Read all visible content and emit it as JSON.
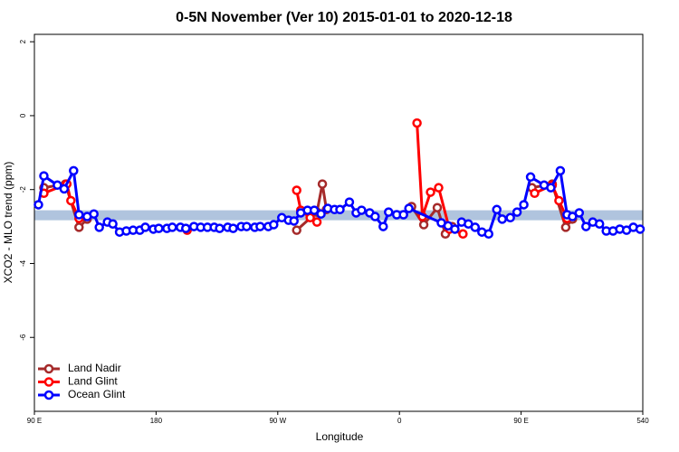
{
  "chart_data": {
    "type": "line",
    "title": "0-5N November (Ver 10)   2015-01-01 to 2020-12-18",
    "x_label": "Longitude",
    "y_label": "XCO2 - MLO trend (ppm)",
    "xlim": [
      90,
      540
    ],
    "ylim": [
      -8,
      2.2
    ],
    "xticks": [
      {
        "value": 90,
        "label": "90 E"
      },
      180,
      {
        "value": 270,
        "label": "90 W"
      },
      {
        "value": 360,
        "label": "0"
      },
      {
        "value": 450,
        "label": "90 E"
      },
      540
    ],
    "yticks": [
      2,
      0,
      -2,
      -4,
      -6
    ],
    "band": [
      -2.56,
      -2.83
    ],
    "band_color": "#b0c4de",
    "legend": "bottom-left",
    "series": [
      {
        "name": "Land Nadir",
        "color": "#a52a2a",
        "x": [
          97,
          113,
          123,
          129,
          200,
          284,
          299,
          303,
          306,
          340,
          369,
          378,
          388,
          394,
          399,
          430,
          458,
          473,
          483,
          488
        ],
        "values": [
          -1.95,
          -1.85,
          -3.02,
          -2.8,
          null,
          -3.1,
          -2.61,
          -1.85,
          -2.54,
          null,
          -2.46,
          -2.95,
          -2.49,
          -3.2,
          -3.0,
          null,
          -1.95,
          -1.85,
          -3.02,
          -2.8
        ]
      },
      {
        "name": "Land Glint",
        "color": "#ff0000",
        "x": [
          97,
          114,
          117,
          123,
          160,
          203,
          250,
          284,
          287,
          294,
          299,
          330,
          373,
          377,
          383,
          389,
          397,
          407,
          430,
          460,
          473,
          478,
          484
        ],
        "values": [
          -2.1,
          -1.85,
          -2.3,
          -2.78,
          null,
          -3.1,
          null,
          -2.02,
          -2.56,
          -2.76,
          -2.88,
          null,
          -0.2,
          -2.73,
          -2.07,
          -1.95,
          -3.07,
          -3.2,
          null,
          -2.1,
          -1.88,
          -2.3,
          -2.78
        ]
      },
      {
        "name": "Ocean Glint",
        "color": "#0000ff",
        "x": [
          93,
          97,
          107,
          112,
          119,
          123,
          129,
          134,
          138,
          144,
          148,
          153,
          158,
          163,
          168,
          172,
          178,
          182,
          188,
          192,
          198,
          202,
          208,
          213,
          218,
          223,
          227,
          233,
          237,
          243,
          247,
          253,
          257,
          263,
          267,
          273,
          278,
          282,
          287,
          292,
          297,
          302,
          307,
          312,
          316,
          323,
          328,
          332,
          338,
          342,
          348,
          352,
          358,
          363,
          367,
          391,
          396,
          401,
          406,
          411,
          416,
          421,
          426,
          432,
          436,
          442,
          447,
          452,
          457,
          467,
          472,
          479,
          484,
          488,
          493,
          498,
          503,
          508,
          513,
          518,
          523,
          528,
          533,
          538
        ],
        "values": [
          -2.41,
          -1.63,
          -1.88,
          -1.98,
          -1.49,
          -2.68,
          -2.73,
          -2.66,
          -3.02,
          -2.88,
          -2.93,
          -3.15,
          -3.12,
          -3.1,
          -3.1,
          -3.02,
          -3.07,
          -3.05,
          -3.05,
          -3.02,
          -3.02,
          -3.05,
          -3.0,
          -3.02,
          -3.02,
          -3.02,
          -3.05,
          -3.02,
          -3.05,
          -3.0,
          -3.0,
          -3.02,
          -3.0,
          -3.0,
          -2.95,
          -2.76,
          -2.83,
          -2.85,
          -2.63,
          -2.56,
          -2.56,
          -2.66,
          -2.51,
          -2.54,
          -2.54,
          -2.34,
          -2.63,
          -2.56,
          -2.63,
          -2.73,
          -3.0,
          -2.61,
          -2.68,
          -2.68,
          -2.51,
          -2.9,
          -2.98,
          -3.07,
          -2.88,
          -2.93,
          -3.02,
          -3.15,
          -3.2,
          -2.54,
          -2.8,
          -2.76,
          -2.61,
          -2.41,
          -1.66,
          -1.88,
          -1.95,
          -1.49,
          -2.68,
          -2.73,
          -2.63,
          -3.0,
          -2.88,
          -2.93,
          -3.12,
          -3.12,
          -3.07,
          -3.1,
          -3.02,
          -3.07
        ]
      }
    ]
  }
}
